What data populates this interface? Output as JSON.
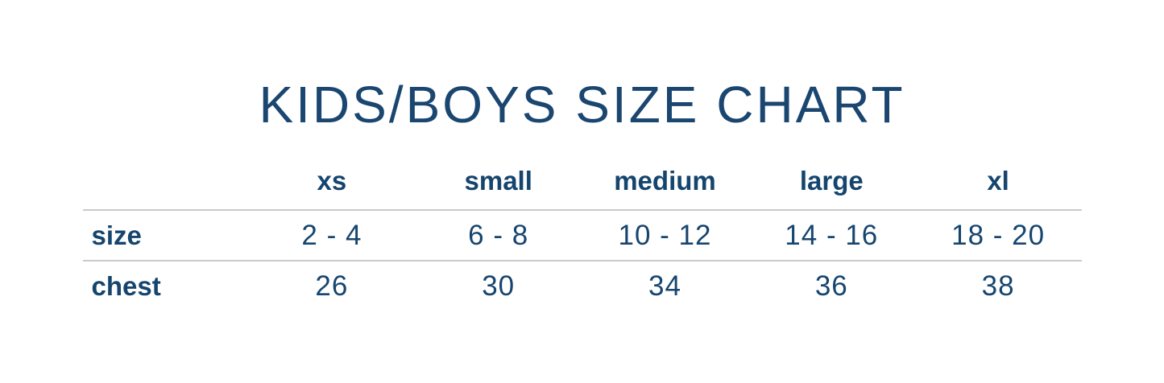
{
  "title": "KIDS/BOYS SIZE CHART",
  "colors": {
    "text_navy": "#16456f",
    "title_navy": "#1a4670",
    "divider_gray": "#cbcbcb",
    "background": "#ffffff"
  },
  "chart_data": {
    "type": "table",
    "title": "KIDS/BOYS SIZE CHART",
    "columns": [
      "xs",
      "small",
      "medium",
      "large",
      "xl"
    ],
    "row_headers": [
      "size",
      "chest"
    ],
    "rows": [
      [
        "2 - 4",
        "6 - 8",
        "10 - 12",
        "14 - 16",
        "18 - 20"
      ],
      [
        "26",
        "30",
        "34",
        "36",
        "38"
      ]
    ],
    "size_ranges": [
      [
        2,
        4
      ],
      [
        6,
        8
      ],
      [
        10,
        12
      ],
      [
        14,
        16
      ],
      [
        18,
        20
      ]
    ],
    "chest_values": [
      26,
      30,
      34,
      36,
      38
    ],
    "layout": {
      "grid": "two horizontal divider lines: below header row and below size row",
      "first_column": "row labels, left-aligned",
      "data_columns": "center-aligned"
    }
  }
}
